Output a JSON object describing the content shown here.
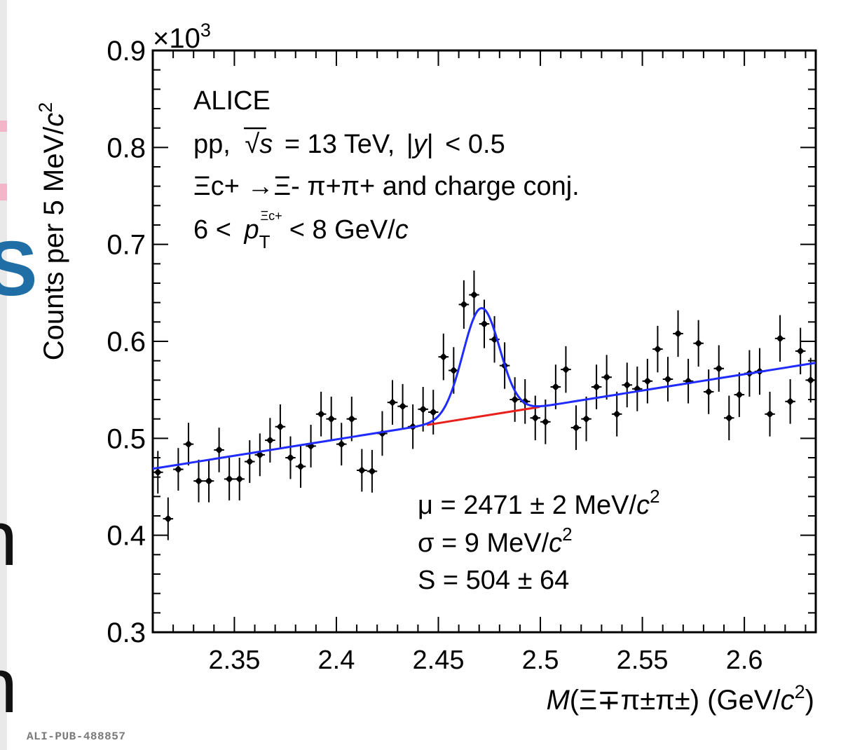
{
  "background_fragments": [
    "S",
    "n",
    "n"
  ],
  "footer_id": "ALI-PUB-488857",
  "colors": {
    "fit_total": "#1f2bff",
    "fit_background": "#e8201b",
    "points": "#000000",
    "background_accent": "#f2b6c8",
    "background_s": "#1f6fa6"
  },
  "chart_data": {
    "type": "scatter",
    "xlabel_parts": {
      "italic": "M",
      "rest": "(Ξ∓π±π±) (GeV/",
      "italic2": "c",
      "sup": "2",
      "end": ")"
    },
    "ylabel_parts": {
      "main": "Counts per 5 MeV/",
      "italic": "c",
      "sup": "2"
    },
    "y_multiplier": {
      "base": "×10",
      "exp": "3"
    },
    "xlim": [
      2.31,
      2.635
    ],
    "ylim": [
      0.3,
      0.9
    ],
    "x_ticks": [
      "2.35",
      "2.4",
      "2.45",
      "2.5",
      "2.55",
      "2.6"
    ],
    "y_ticks": [
      "0.3",
      "0.4",
      "0.5",
      "0.6",
      "0.7",
      "0.8",
      "0.9"
    ],
    "annotations": {
      "experiment": "ALICE",
      "system_prefix": "pp,",
      "system_s": "s",
      "system_suffix": "= 13 TeV,",
      "rapidity_y": "y",
      "rapidity_suffix": "< 0.5",
      "decay_parent": "Ξc+",
      "decay_rest": "→Ξ- π+π+ and charge conj.",
      "pt_prefix": "6 <",
      "pt_symbol": "p",
      "pt_sub": "T",
      "pt_sup": "Ξc+",
      "pt_suffix": "< 8 GeV/",
      "pt_unit_italic": "c",
      "mu_text": "μ = 2471 ± 2 MeV/",
      "sigma_text": "σ = 9 MeV/",
      "unit_italic": "c",
      "unit_sup": "2",
      "signal_text": "S = 504 ± 64"
    },
    "series": [
      {
        "x": [
          2.3125,
          2.3175,
          2.3225,
          2.3275,
          2.3325,
          2.3375,
          2.3425,
          2.3475,
          2.3525,
          2.3575,
          2.3625,
          2.3675,
          2.3725,
          2.3775,
          2.3825,
          2.3875,
          2.3925,
          2.3975,
          2.4025,
          2.4075,
          2.4125,
          2.4175,
          2.4225,
          2.4275,
          2.4325,
          2.4375,
          2.4425,
          2.4475,
          2.4525,
          2.4575,
          2.4625,
          2.4675,
          2.4725,
          2.4775,
          2.4825,
          2.4875,
          2.4925,
          2.4975,
          2.5025,
          2.5075,
          2.5125,
          2.5175,
          2.5225,
          2.5275,
          2.5325,
          2.5375,
          2.5425,
          2.5475,
          2.5525,
          2.5575,
          2.5625,
          2.5675,
          2.5725,
          2.5775,
          2.5825,
          2.5875,
          2.5925,
          2.5975,
          2.6025,
          2.6075,
          2.6125,
          2.6175,
          2.6225,
          2.6275,
          2.6325
        ],
        "y": [
          0.465,
          0.417,
          0.468,
          0.494,
          0.456,
          0.456,
          0.488,
          0.458,
          0.458,
          0.476,
          0.483,
          0.498,
          0.512,
          0.48,
          0.471,
          0.492,
          0.525,
          0.52,
          0.494,
          0.52,
          0.467,
          0.466,
          0.505,
          0.537,
          0.533,
          0.512,
          0.53,
          0.527,
          0.584,
          0.57,
          0.638,
          0.648,
          0.618,
          0.602,
          0.575,
          0.54,
          0.538,
          0.521,
          0.517,
          0.553,
          0.571,
          0.511,
          0.52,
          0.553,
          0.563,
          0.525,
          0.555,
          0.551,
          0.559,
          0.592,
          0.561,
          0.608,
          0.559,
          0.598,
          0.548,
          0.572,
          0.521,
          0.545,
          0.567,
          0.569,
          0.525,
          0.603,
          0.538,
          0.59,
          0.56
        ],
        "yerr": [
          0.022,
          0.022,
          0.022,
          0.022,
          0.022,
          0.022,
          0.023,
          0.022,
          0.022,
          0.022,
          0.022,
          0.023,
          0.023,
          0.022,
          0.022,
          0.022,
          0.023,
          0.023,
          0.022,
          0.023,
          0.022,
          0.022,
          0.023,
          0.023,
          0.023,
          0.023,
          0.023,
          0.023,
          0.024,
          0.024,
          0.025,
          0.025,
          0.025,
          0.024,
          0.024,
          0.023,
          0.023,
          0.023,
          0.023,
          0.023,
          0.024,
          0.023,
          0.023,
          0.023,
          0.023,
          0.023,
          0.023,
          0.023,
          0.023,
          0.024,
          0.023,
          0.024,
          0.023,
          0.024,
          0.023,
          0.024,
          0.023,
          0.023,
          0.024,
          0.024,
          0.023,
          0.024,
          0.023,
          0.024,
          0.023
        ],
        "xerr": 0.0025
      }
    ],
    "fit": {
      "background": {
        "slope": 0.3362,
        "intercept_at_2_31": 0.4686,
        "drawn_range": [
          2.4443,
          2.4997
        ]
      },
      "signal": {
        "mu": 2.471,
        "sigma": 0.009,
        "peak_height": 0.1115
      },
      "range": [
        2.31,
        2.635
      ]
    },
    "grid": false,
    "legend": "none"
  }
}
